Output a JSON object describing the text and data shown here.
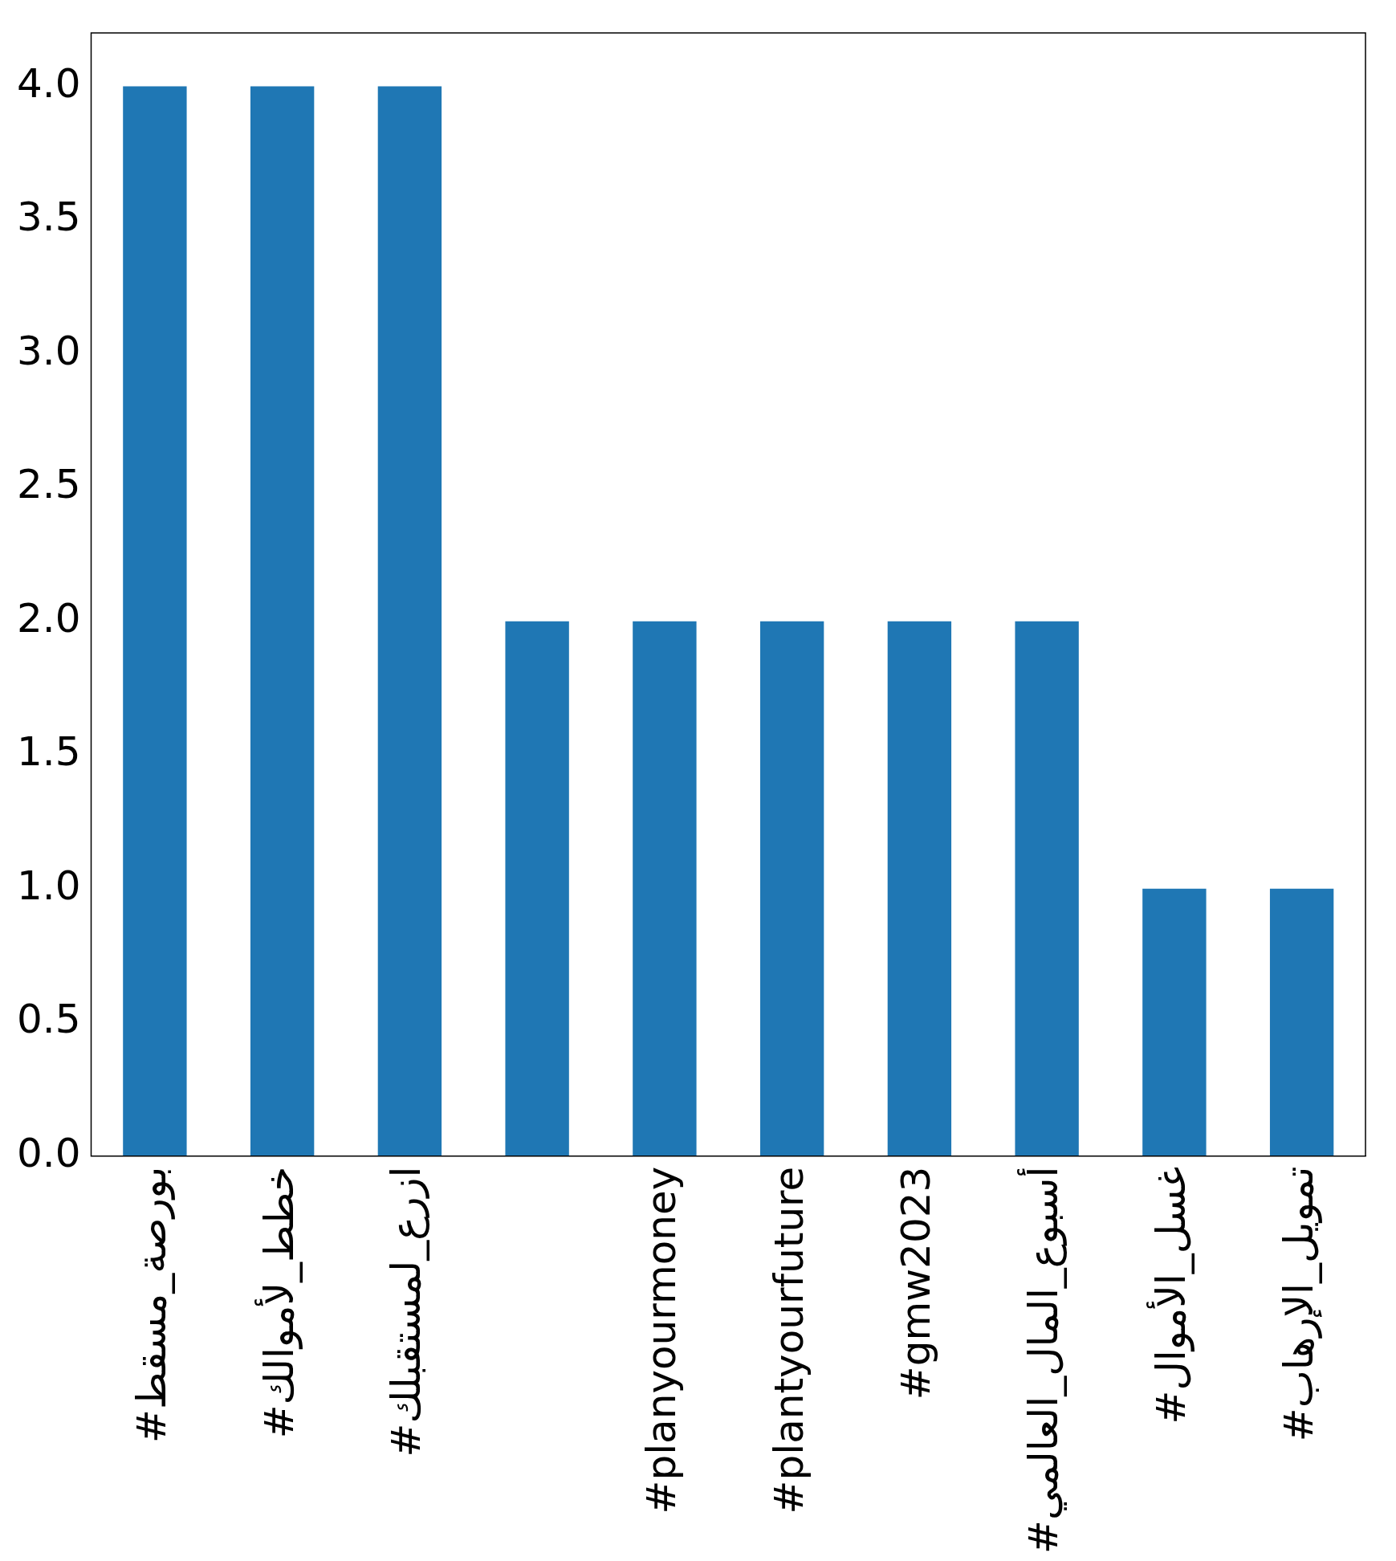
{
  "chart_data": {
    "type": "bar",
    "categories": [
      "#بورصة_مسقط",
      "#خطط_لأموالك",
      "#ازرع_لمستقبلك",
      null,
      "#planyourmoney",
      "#plantyourfuture",
      "#gmw2023",
      "#أسبوع_المال_العالمي",
      "#غسل_الأموال",
      "#تمويل_الإرهاب"
    ],
    "values": [
      4,
      4,
      4,
      2,
      2,
      2,
      2,
      2,
      1,
      1
    ],
    "color": "#1f77b4",
    "ylim": [
      0,
      4.2
    ],
    "yticks": [
      {
        "value": 0,
        "label": "0.0"
      },
      {
        "value": 0.5,
        "label": "0.5"
      },
      {
        "value": 1,
        "label": "1.0"
      },
      {
        "value": 1.5,
        "label": "1.5"
      },
      {
        "value": 2,
        "label": "2.0"
      },
      {
        "value": 2.5,
        "label": "2.5"
      },
      {
        "value": 3,
        "label": "3.0"
      },
      {
        "value": 3.5,
        "label": "3.5"
      },
      {
        "value": 4,
        "label": "4.0"
      }
    ],
    "grid": false,
    "legend": false
  }
}
